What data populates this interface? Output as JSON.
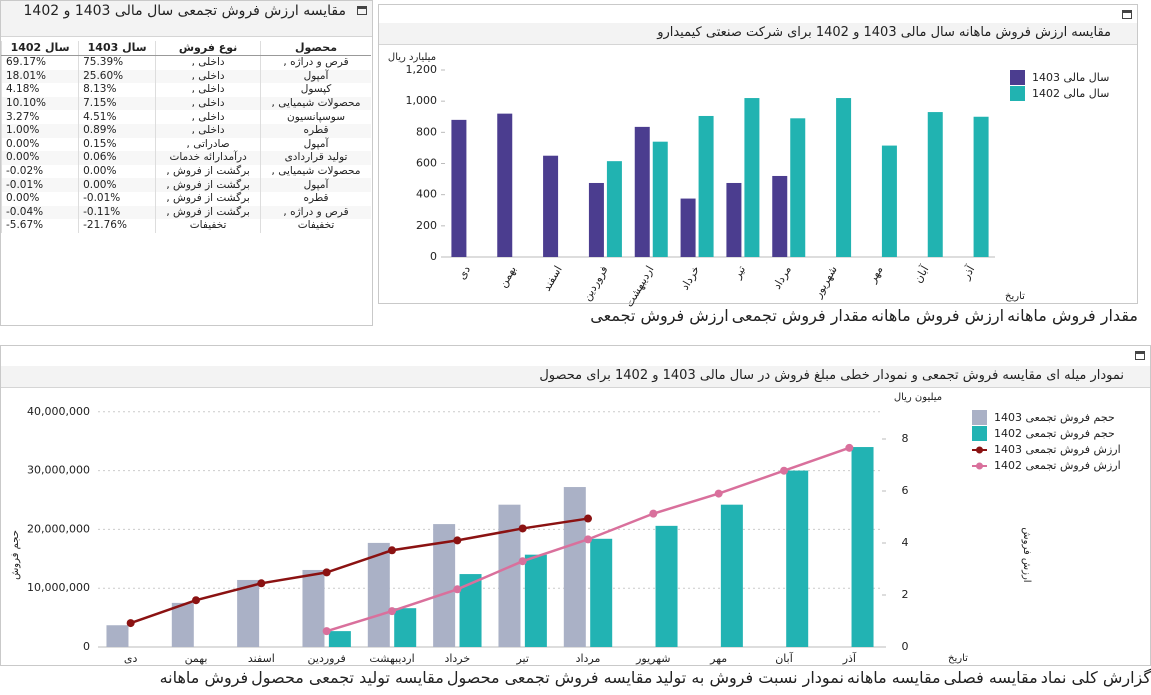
{
  "table_panel": {
    "title": "مقایسه ارزش فروش تجمعی سال مالی 1403 و 1402",
    "columns": [
      "محصول",
      "نوع فروش",
      "سال 1403",
      "سال 1402"
    ],
    "rows": [
      [
        "قرص و دراژه ,",
        "داخلی ,",
        "75.39%",
        "69.17%"
      ],
      [
        "آمپول",
        "داخلی ,",
        "25.60%",
        "18.01%"
      ],
      [
        "کپسول",
        "داخلی ,",
        "8.13%",
        "4.18%"
      ],
      [
        "محصولات شیمیایی ,",
        "داخلی ,",
        "7.15%",
        "10.10%"
      ],
      [
        "سوسپانسیون",
        "داخلی ,",
        "4.51%",
        "3.27%"
      ],
      [
        "قطره",
        "داخلی ,",
        "0.89%",
        "1.00%"
      ],
      [
        "آمپول",
        "صادراتی ,",
        "0.15%",
        "0.00%"
      ],
      [
        "تولید قراردادی",
        "درآمدارائه خدمات",
        "0.06%",
        "0.00%"
      ],
      [
        "محصولات شیمیایی ,",
        "برگشت از فروش ,",
        "0.00%",
        "-0.02%"
      ],
      [
        "آمپول",
        "برگشت از فروش ,",
        "0.00%",
        "-0.01%"
      ],
      [
        "قطره",
        "برگشت از فروش ,",
        "-0.01%",
        "0.00%"
      ],
      [
        "قرص و دراژه ,",
        "برگشت از فروش ,",
        "-0.11%",
        "-0.04%"
      ],
      [
        "تخفیفات",
        "تخفیفات",
        "-21.76%",
        "-5.67%"
      ]
    ]
  },
  "chart_data": [
    {
      "type": "bar",
      "title": "مقایسه ارزش فروش ماهانه سال مالی 1403 و 1402 برای شرکت صنعتی کیمیدارو",
      "y_unit": "میلیارد ریال",
      "x_label": "تاریخ",
      "categories": [
        "دی",
        "بهمن",
        "اسفند",
        "فروردین",
        "اردیبهشت",
        "خرداد",
        "تیر",
        "مرداد",
        "شهریور",
        "مهر",
        "آبان",
        "آذر"
      ],
      "series": [
        {
          "name": "سال مالی 1403",
          "color": "#4b3d8f",
          "values": [
            880,
            920,
            650,
            475,
            835,
            375,
            475,
            520,
            null,
            null,
            null,
            null
          ]
        },
        {
          "name": "سال مالی 1402",
          "color": "#21b3b1",
          "values": [
            null,
            null,
            null,
            615,
            740,
            905,
            1020,
            890,
            1020,
            715,
            930,
            900
          ]
        }
      ],
      "ylim": [
        0,
        1200
      ],
      "yticks": [
        0,
        200,
        400,
        600,
        800,
        {
          "value": 1000,
          "label": "1,000"
        },
        {
          "value": 1200,
          "label": "1,200"
        }
      ],
      "grid": false
    },
    {
      "type": "combo",
      "title": "نمودار میله ای مقایسه فروش تجمعی و نمودار خطی مبلغ فروش در سال مالی 1403 و 1402 برای محصول",
      "y_label": "حجم فروش",
      "y2_unit": "میلیون ریال",
      "y2_label": "ارزش فروش",
      "x_label": "تاریخ",
      "categories": [
        "دی",
        "بهمن",
        "اسفند",
        "فروردین",
        "اردیبهشت",
        "خرداد",
        "تیر",
        "مرداد",
        "شهریور",
        "مهر",
        "آبان",
        "آذر"
      ],
      "series": [
        {
          "name": "حجم فروش تجمعی 1403",
          "kind": "bar",
          "color": "#aab1c6",
          "values": [
            3700000,
            7500000,
            11400000,
            13100000,
            17700000,
            20900000,
            24200000,
            27200000,
            null,
            null,
            null,
            null
          ]
        },
        {
          "name": "حجم فروش تجمعی 1402",
          "kind": "bar",
          "color": "#22b3b3",
          "values": [
            null,
            null,
            null,
            2700000,
            6600000,
            12400000,
            15700000,
            18400000,
            20600000,
            24200000,
            30000000,
            34000000
          ]
        },
        {
          "name": "ارزش فروش تجمعی 1403",
          "kind": "line",
          "axis": "y2",
          "color": "#8b1212",
          "values": [
            0.92,
            1.8,
            2.45,
            2.87,
            3.72,
            4.1,
            4.56,
            4.94,
            null,
            null,
            null,
            null
          ]
        },
        {
          "name": "ارزش فروش تجمعی 1402",
          "kind": "line",
          "axis": "y2",
          "color": "#d9709c",
          "values": [
            null,
            null,
            null,
            0.61,
            1.38,
            2.22,
            3.3,
            4.14,
            5.13,
            5.9,
            6.78,
            7.66
          ]
        }
      ],
      "ylim": [
        0,
        42000000
      ],
      "yticks": [
        0,
        {
          "value": 10000000,
          "label": "10,000,000"
        },
        {
          "value": 20000000,
          "label": "20,000,000"
        },
        {
          "value": 30000000,
          "label": "30,000,000"
        },
        {
          "value": 40000000,
          "label": "40,000,000"
        }
      ],
      "y2lim": [
        0,
        9.5
      ],
      "y2ticks": [
        0,
        2,
        4,
        6,
        8
      ],
      "grid": true
    }
  ],
  "top_tabs": {
    "items": [
      "مقدار فروش ماهانه",
      "ارزش فروش ماهانه",
      "مقدار فروش تجمعی",
      "ارزش فروش تجمعی"
    ],
    "active": 1
  },
  "bottom_tabs": {
    "items": [
      "گزارش کلی نماد",
      "مقایسه فصلی",
      "مقایسه ماهانه",
      "نمودار نسبت فروش به تولید",
      "مقایسه فروش تجمعی محصول",
      "مقایسه تولید تجمعی محصول",
      "فروش ماهانه"
    ],
    "active": 4
  }
}
